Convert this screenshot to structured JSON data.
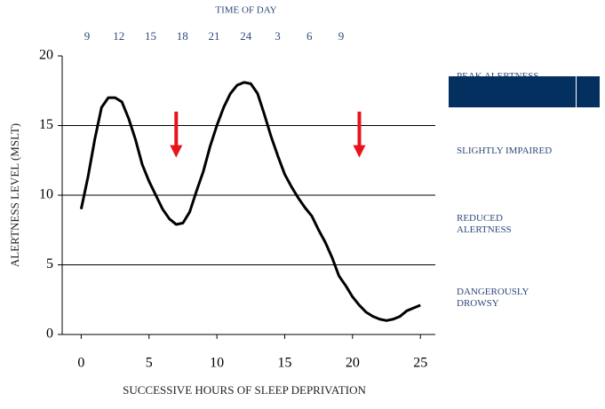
{
  "chart_data": {
    "type": "line",
    "top_axis": {
      "label": "TIME OF DAY",
      "categories": [
        "9",
        "12",
        "15",
        "18",
        "21",
        "24",
        "3",
        "6",
        "9"
      ]
    },
    "x_label": "SUCCESSIVE HOURS OF SLEEP DEPRIVATION",
    "y_label": "ALERTNESS LEVEL (MSLT)",
    "xlim": [
      -1.4,
      26.1
    ],
    "xticks": [
      0,
      5,
      10,
      15,
      20,
      25
    ],
    "ylim": [
      0,
      20
    ],
    "yticks": [
      0,
      5,
      10,
      15,
      20
    ],
    "grid": true,
    "zone_labels": [
      "PEAK ALERTNESS",
      "SLIGHTLY IMPAIRED",
      "REDUCED ALERTNESS",
      "DANGEROUSLY DROWSY"
    ],
    "series": [
      {
        "color": "#000000",
        "x": [
          0,
          0.5,
          1,
          1.5,
          2,
          2.5,
          3,
          3.5,
          4,
          4.5,
          5,
          5.5,
          6,
          6.5,
          7,
          7.5,
          8,
          8.5,
          9,
          9.5,
          10,
          10.5,
          11,
          11.5,
          12,
          12.5,
          13,
          13.5,
          14,
          14.5,
          15,
          15.5,
          16,
          16.5,
          17,
          17.5,
          18,
          18.5,
          19,
          19.5,
          20,
          20.5,
          21,
          21.5,
          22,
          22.5,
          23,
          23.5,
          24,
          24.5,
          25
        ],
        "values": [
          9,
          11.3,
          14,
          16.3,
          17,
          17,
          16.7,
          15.5,
          14,
          12.2,
          11,
          10,
          9,
          8.3,
          7.9,
          8,
          8.8,
          10.3,
          11.7,
          13.5,
          15,
          16.3,
          17.3,
          17.9,
          18.1,
          18,
          17.3,
          15.8,
          14.2,
          12.8,
          11.5,
          10.6,
          9.8,
          9.1,
          8.5,
          7.5,
          6.6,
          5.5,
          4.2,
          3.5,
          2.7,
          2.1,
          1.6,
          1.3,
          1.1,
          1.0,
          1.1,
          1.3,
          1.7,
          1.9,
          2.1
        ]
      }
    ],
    "arrows": [
      {
        "x": 7,
        "from": 16,
        "to": 12.7,
        "color": "#e8141b"
      },
      {
        "x": 20.5,
        "from": 16,
        "to": 12.7,
        "color": "#e8141b"
      }
    ]
  }
}
